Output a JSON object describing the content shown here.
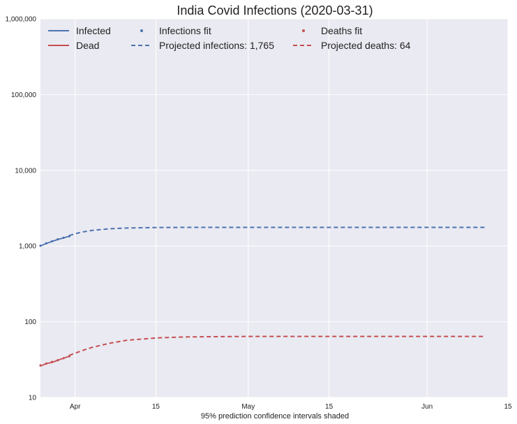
{
  "chart_data": {
    "type": "line",
    "title": "India Covid Infections (2020-03-31)",
    "xlabel": "95% prediction confidence intervals shaded",
    "ylabel": "",
    "yscale": "log",
    "ylim": [
      10,
      1000000
    ],
    "xlim": [
      "2020-03-26",
      "2020-06-15"
    ],
    "x_ticks": [
      {
        "date": "2020-04-01",
        "label": "Apr"
      },
      {
        "date": "2020-04-15",
        "label": "15"
      },
      {
        "date": "2020-05-01",
        "label": "May"
      },
      {
        "date": "2020-05-15",
        "label": "15"
      },
      {
        "date": "2020-06-01",
        "label": "Jun"
      },
      {
        "date": "2020-06-15",
        "label": "15"
      }
    ],
    "y_ticks": [
      {
        "value": 10,
        "label": "10"
      },
      {
        "value": 100,
        "label": "100"
      },
      {
        "value": 1000,
        "label": "1,000"
      },
      {
        "value": 10000,
        "label": "10,000"
      },
      {
        "value": 100000,
        "label": "100,000"
      },
      {
        "value": 1000000,
        "label": "1,000,000"
      }
    ],
    "grid": true,
    "background": "#eaeaf2",
    "legend_position": "top",
    "colors": {
      "infected": "#4c72b0",
      "dead": "#c44e52"
    },
    "series": [
      {
        "key": "infected",
        "name": "Infected",
        "style": "solid",
        "x": [
          "2020-03-26",
          "2020-03-27",
          "2020-03-28",
          "2020-03-29",
          "2020-03-30",
          "2020-03-31"
        ],
        "y": [
          1000,
          1080,
          1150,
          1220,
          1280,
          1350
        ]
      },
      {
        "key": "dead",
        "name": "Dead",
        "style": "solid",
        "x": [
          "2020-03-26",
          "2020-03-27",
          "2020-03-28",
          "2020-03-29",
          "2020-03-30",
          "2020-03-31"
        ],
        "y": [
          26,
          28,
          29,
          31,
          33,
          35
        ]
      },
      {
        "key": "infected",
        "name": "Infections fit",
        "style": "dots",
        "x": [
          "2020-03-26",
          "2020-03-27",
          "2020-03-28",
          "2020-03-29",
          "2020-03-30",
          "2020-03-31"
        ],
        "y": [
          1010,
          1085,
          1155,
          1225,
          1285,
          1345
        ]
      },
      {
        "key": "infected",
        "name": "Projected infections: 1,765",
        "style": "dashed",
        "x": [
          "2020-03-31",
          "2020-04-02",
          "2020-04-04",
          "2020-04-07",
          "2020-04-10",
          "2020-04-15",
          "2020-04-20",
          "2020-05-01",
          "2020-05-15",
          "2020-06-01",
          "2020-06-11"
        ],
        "y": [
          1380,
          1520,
          1610,
          1690,
          1730,
          1755,
          1762,
          1765,
          1765,
          1765,
          1765
        ]
      },
      {
        "key": "dead",
        "name": "Deaths fit",
        "style": "dots",
        "x": [
          "2020-03-26",
          "2020-03-27",
          "2020-03-28",
          "2020-03-29",
          "2020-03-30",
          "2020-03-31"
        ],
        "y": [
          26.5,
          28,
          29.5,
          31,
          33,
          35
        ]
      },
      {
        "key": "dead",
        "name": "Projected deaths: 64",
        "style": "dashed",
        "x": [
          "2020-03-31",
          "2020-04-02",
          "2020-04-04",
          "2020-04-07",
          "2020-04-10",
          "2020-04-15",
          "2020-04-20",
          "2020-05-01",
          "2020-05-15",
          "2020-06-01",
          "2020-06-11"
        ],
        "y": [
          36,
          41,
          46,
          52,
          57,
          61,
          63,
          64,
          64,
          64,
          64
        ]
      }
    ]
  }
}
